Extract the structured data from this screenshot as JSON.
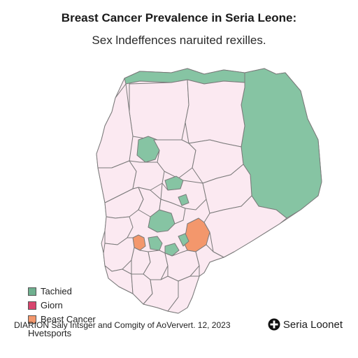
{
  "map": {
    "title": "Breast Cancer Prevalence in Seria Leone:",
    "subtitle": "Sex lndeffences naruited rexilles.",
    "colors": {
      "base_fill": "#fbe9f1",
      "green_fill": "#86c4a3",
      "orange_fill": "#f3976c",
      "border": "#7a7a7a"
    }
  },
  "legend": {
    "items": [
      {
        "label": "Tachied",
        "color": "#6fb08f"
      },
      {
        "label": "Giorn",
        "color": "#d8456e"
      },
      {
        "label": "Beast Cancer",
        "color": "#f3976c"
      }
    ],
    "continuation": "Hvetsports"
  },
  "footer": {
    "text": "DIARION Saly Intsger and Comgity of AoVervert. 12, 2023"
  },
  "brand": {
    "name": "Seria Loonet",
    "icon": "plus-circle-icon"
  }
}
